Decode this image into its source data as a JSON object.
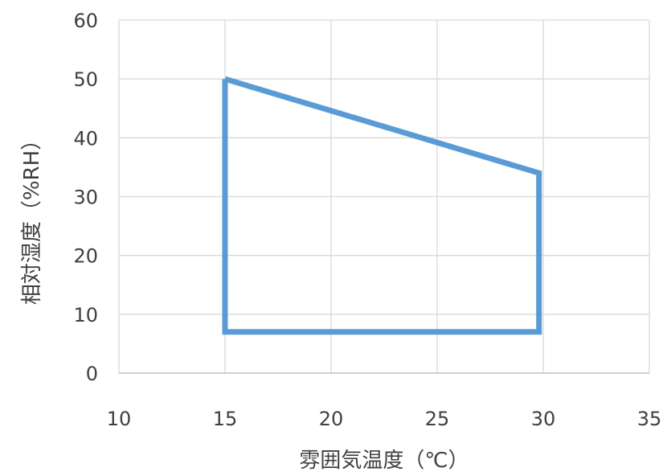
{
  "chart_data": {
    "type": "line",
    "title": "",
    "xlabel": "雰囲気温度（℃）",
    "ylabel": "相対湿度（%RH）",
    "xlim": [
      10,
      35
    ],
    "ylim": [
      0,
      60
    ],
    "xticks": [
      10,
      15,
      20,
      25,
      30,
      35
    ],
    "yticks": [
      0,
      10,
      20,
      30,
      40,
      50,
      60
    ],
    "grid": true,
    "legend": "none",
    "series": [
      {
        "color": "#5B9BD5",
        "x": [
          15,
          15,
          29.8,
          29.8,
          15
        ],
        "y": [
          50,
          7,
          7,
          34,
          50
        ]
      }
    ]
  }
}
